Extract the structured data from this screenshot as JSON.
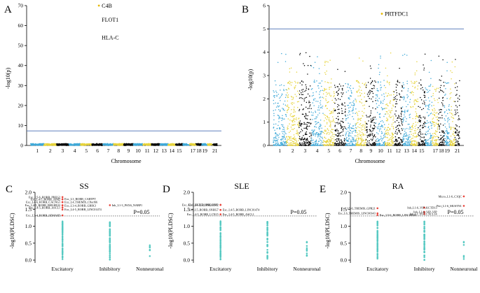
{
  "colors": {
    "chrom_palette": [
      "#3fa9d8",
      "#e6d33a",
      "#000000"
    ],
    "threshold": "#4a6fb3",
    "teal": "#56c9c2",
    "red": "#e8453c",
    "dotted": "#555555"
  },
  "chart_data": [
    {
      "id": "A",
      "type": "scatter",
      "panel_letter": "A",
      "ylabel": "-log10(p)",
      "xlabel": "Chromosome",
      "ylim": [
        0,
        70
      ],
      "yticks": [
        0,
        10,
        20,
        30,
        40,
        50,
        60,
        70
      ],
      "xticklabels": [
        "1",
        "2",
        "3",
        "4",
        "5",
        "6",
        "7",
        "8",
        "9",
        "10",
        "11",
        "12",
        "13",
        "14",
        "15",
        "17",
        "18",
        "19",
        "21"
      ],
      "threshold": 7.3,
      "annotations": [
        {
          "text": "C4B",
          "chr": 6,
          "y": 73
        },
        {
          "text": "FLOT1",
          "chr": 6,
          "y": 63
        },
        {
          "text": "HLA-C",
          "chr": 6,
          "y": 54
        }
      ]
    },
    {
      "id": "B",
      "type": "scatter",
      "panel_letter": "B",
      "ylabel": "-log10(p)",
      "xlabel": "Chromosome",
      "ylim": [
        0,
        6
      ],
      "yticks": [
        0,
        1,
        2,
        3,
        4,
        5,
        6
      ],
      "xticklabels": [
        "1",
        "2",
        "3",
        "4",
        "5",
        "6",
        "7",
        "8",
        "9",
        "10",
        "11",
        "12",
        "13",
        "14",
        "15",
        "17",
        "18",
        "19",
        "21"
      ],
      "threshold": 5,
      "annotations": [
        {
          "text": "PRTFDC1",
          "chr": 10,
          "y": 5.65
        }
      ]
    },
    {
      "id": "C",
      "type": "scatter",
      "panel_letter": "C",
      "title": "SS",
      "ylabel": "-log10(PLDSC)",
      "ylim": [
        0,
        2
      ],
      "yticks": [
        0.0,
        0.5,
        1.0,
        1.5,
        2.0
      ],
      "categories": [
        "Excitatory",
        "Inhibitory",
        "Nonneuronal"
      ],
      "threshold_label": "P=0.05",
      "threshold": 1.301,
      "significant": [
        {
          "cat": 0,
          "y": 1.86,
          "label": "Exc_L5-6_RORB_PREG2"
        },
        {
          "cat": 0,
          "y": 1.79,
          "label": "Exc_L4-5_RORB_AIM2"
        },
        {
          "cat": 0,
          "y": 1.71,
          "label": "Exc_L4-6_RORB_CACNG1"
        },
        {
          "cat": 0,
          "y": 1.62,
          "label": "Exc_L4-5_RORB_BHLHE22"
        },
        {
          "cat": 0,
          "y": 1.55,
          "label": "Exc_L4-5_RORB_ASCL1"
        },
        {
          "cat": 0,
          "y": 1.32,
          "label": "Exc_L3-4_RORB_SEMA6D"
        },
        {
          "cat": 0,
          "y": 1.8,
          "label": "Exc_L3_RORB_CARTPT"
        },
        {
          "cat": 0,
          "y": 1.71,
          "label": "Exc_L4_THEMIS_C8orf66"
        },
        {
          "cat": 0,
          "y": 1.61,
          "label": "Exc_L3-4_RORB_GRIK3"
        },
        {
          "cat": 0,
          "y": 1.49,
          "label": "Exc_L4-5_RORB_LINC01474"
        },
        {
          "cat": 1,
          "y": 1.62,
          "label": "Inh_L1-3_PAX6_NABP1"
        }
      ],
      "nonsig_counts": [
        70,
        60,
        6
      ]
    },
    {
      "id": "D",
      "type": "scatter",
      "panel_letter": "D",
      "title": "SLE",
      "ylabel": "-log10(PLDSC)",
      "ylim": [
        0,
        2
      ],
      "yticks": [
        0.0,
        0.5,
        1.0,
        1.5,
        2.0
      ],
      "categories": [
        "Excitatory",
        "Inhibitory",
        "Nonneuronal"
      ],
      "threshold_label": "P=0.05",
      "threshold": 1.301,
      "significant": [
        {
          "cat": 0,
          "y": 1.63,
          "label": "Exc_L4-5_RORB_AIM2"
        },
        {
          "cat": 0,
          "y": 1.48,
          "label": "Exc_L5_RORB_SNHG7"
        },
        {
          "cat": 0,
          "y": 1.35,
          "label": "Exc_L4-5_RORB_LCN15"
        },
        {
          "cat": 0,
          "y": 1.63,
          "label": "Exc_L3-5_FEZF2_ONECUT1"
        },
        {
          "cat": 0,
          "y": 1.48,
          "label": "Exc_L4-5_RORB_LINC01474"
        },
        {
          "cat": 0,
          "y": 1.35,
          "label": "Exc_L4-5_RORB_ASCL1"
        }
      ],
      "nonsig_counts": [
        70,
        45,
        12
      ]
    },
    {
      "id": "E",
      "type": "scatter",
      "panel_letter": "E",
      "title": "RA",
      "ylabel": "-log10(PLDSC)",
      "ylim": [
        0,
        2
      ],
      "yticks": [
        0.0,
        0.5,
        1.0,
        1.5,
        2.0
      ],
      "categories": [
        "Excitatory",
        "Inhibitory",
        "Nonneuronal"
      ],
      "threshold_label": "P=0.05",
      "threshold": 1.301,
      "significant": [
        {
          "cat": 0,
          "y": 1.53,
          "label": "Exc_L5-6_THEMIS_GPR21"
        },
        {
          "cat": 0,
          "y": 1.38,
          "label": "Exc_L6_THEMIS_LINC00343"
        },
        {
          "cat": 0,
          "y": 1.33,
          "label": "Exc_L5-6_RORB_LINC00320"
        },
        {
          "cat": 1,
          "y": 1.55,
          "label": "Inh_L1-6_VIP_KCTD13"
        },
        {
          "cat": 1,
          "y": 1.42,
          "label": "Inh_L2-6_VIP_VIP"
        },
        {
          "cat": 1,
          "y": 1.36,
          "label": "Inh_L1_SST_CXCL14"
        },
        {
          "cat": 2,
          "y": 1.88,
          "label": "Micro_L1-6_C1QC"
        },
        {
          "cat": 2,
          "y": 1.6,
          "label": "Peri_L1-6_MUSTN1"
        }
      ],
      "nonsig_counts": [
        60,
        55,
        6
      ]
    }
  ]
}
